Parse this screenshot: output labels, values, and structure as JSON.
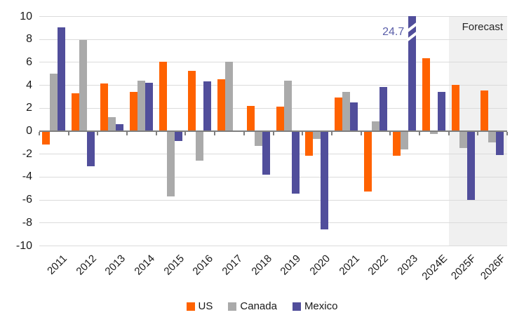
{
  "forecast_label": "Forecast",
  "colors": {
    "us": "#FF6200",
    "canada": "#AAAAAA",
    "mexico": "#514E9B",
    "annotation_text": "#5B5FA9",
    "forecast_band": "#F0F0F0",
    "gridline": "#DBDBDB",
    "axis_line": "#7F7F7F",
    "label_text": "#1A1A1A"
  },
  "chart_data": {
    "type": "bar",
    "title": "",
    "xlabel": "",
    "ylabel": "",
    "categories": [
      "2011",
      "2012",
      "2013",
      "2014",
      "2015",
      "2016",
      "2017",
      "2018",
      "2019",
      "2020",
      "2021",
      "2022",
      "2023",
      "2024E",
      "2025F",
      "2026F"
    ],
    "series": [
      {
        "name": "US",
        "color": "#FF6200",
        "values": [
          -1.2,
          3.3,
          4.1,
          3.4,
          6.0,
          5.2,
          4.5,
          2.2,
          2.1,
          -2.2,
          2.9,
          -5.3,
          -2.2,
          6.3,
          4.0,
          3.5
        ]
      },
      {
        "name": "Canada",
        "color": "#AAAAAA",
        "values": [
          5.0,
          7.9,
          1.2,
          4.4,
          -5.7,
          -2.6,
          6.0,
          -1.3,
          4.4,
          -0.7,
          3.4,
          0.8,
          -1.6,
          -0.3,
          -1.5,
          -1.0
        ]
      },
      {
        "name": "Mexico",
        "color": "#514E9B",
        "values": [
          9.0,
          -3.1,
          0.6,
          4.2,
          -0.9,
          4.3,
          -0.1,
          -3.8,
          -5.5,
          -8.6,
          2.5,
          3.8,
          24.7,
          3.4,
          -6.0,
          -2.1
        ]
      }
    ],
    "ylim": [
      -10,
      10
    ],
    "yticks": [
      10,
      8,
      6,
      4,
      2,
      0,
      -2,
      -4,
      -6,
      -8,
      -10
    ],
    "grid": true,
    "legend_position": "bottom",
    "forecast_categories": [
      "2025F",
      "2026F"
    ],
    "clipped_bar": {
      "series": "Mexico",
      "category": "2023",
      "value": 24.7,
      "display_cap": 10,
      "label": "24.7"
    }
  }
}
